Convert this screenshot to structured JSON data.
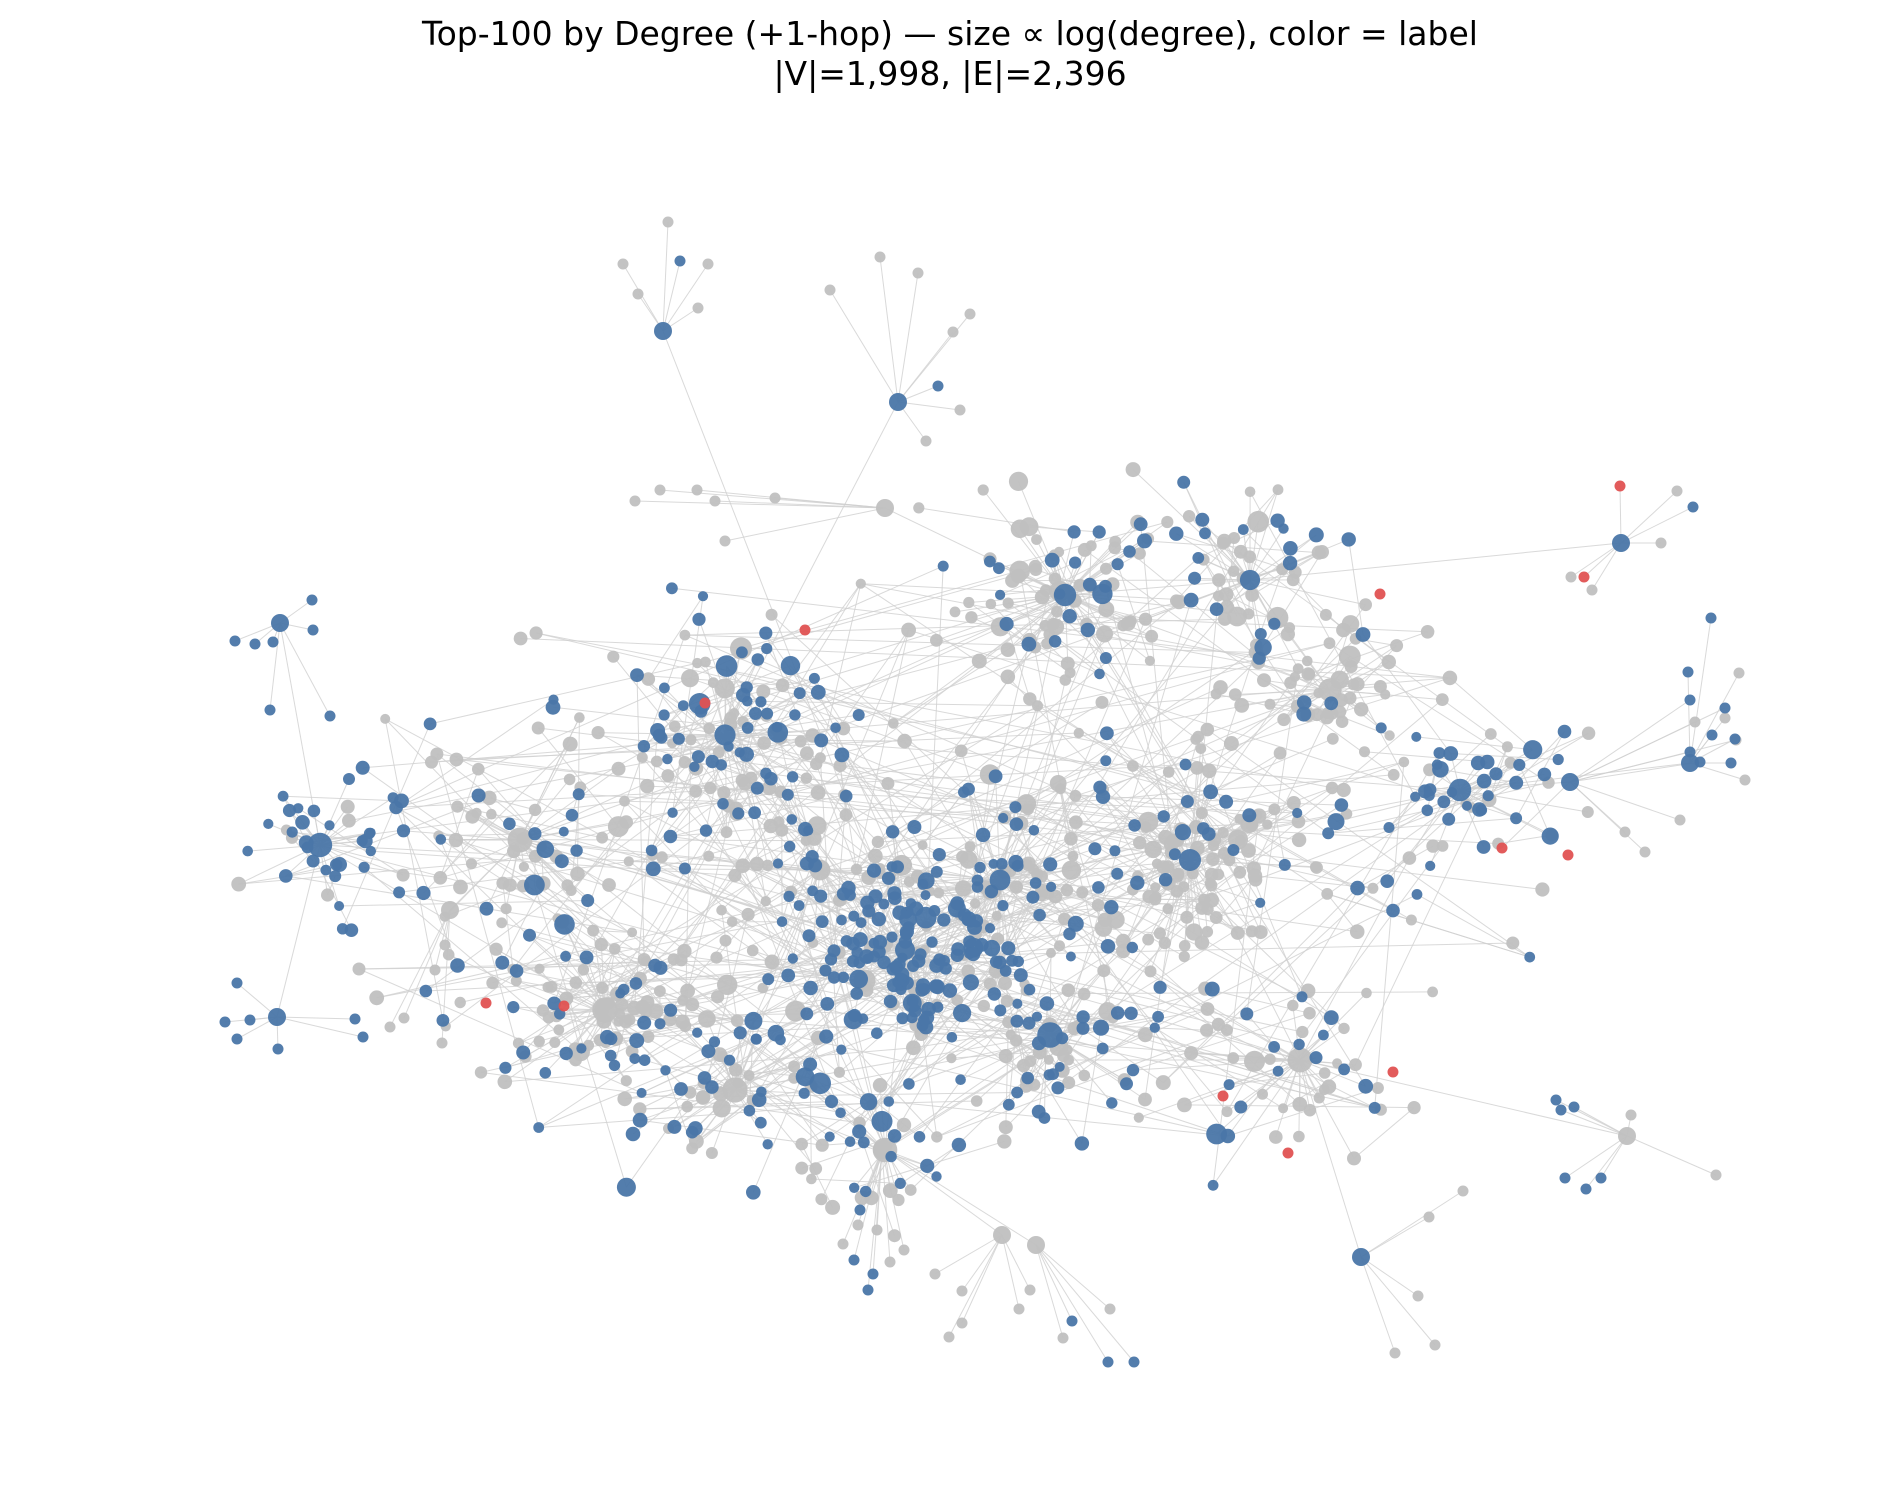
{
  "figure": {
    "title": "Top-100 by Degree (+1-hop) — size ∝ log(degree), color = label",
    "subtitle": "|V|=1,998, |E|=2,396"
  },
  "graph": {
    "vertex_count": 1998,
    "edge_count": 2396,
    "colors": {
      "label_blue": "#4a76a8",
      "label_red": "#e05252",
      "unlabeled_gray": "#c0c0c0",
      "edge": "#d0d0d0"
    }
  }
}
